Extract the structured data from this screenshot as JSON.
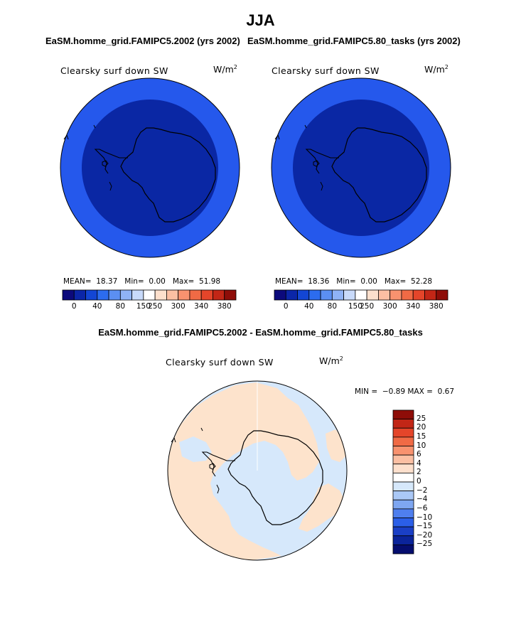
{
  "page": {
    "title": "JJA",
    "colors": {
      "deep_blue": "#0a27a4",
      "ring_blue": "#2558ec",
      "diff_positive": "#fde3cc",
      "diff_negative": "#d6e8fb",
      "coastline": "#000000"
    }
  },
  "panels": [
    {
      "case_title": "EaSM.homme_grid.FAMIPC5.2002 (yrs 2002)",
      "variable": "Clearsky surf down SW",
      "units": "W/m",
      "units_exp": "2",
      "stats": {
        "mean_label": "MEAN=",
        "mean": "18.37",
        "min_label": "Min=",
        "min": "0.00",
        "max_label": "Max=",
        "max": "51.98"
      }
    },
    {
      "case_title": "EaSM.homme_grid.FAMIPC5.80_tasks (yrs 2002)",
      "variable": "Clearsky surf down SW",
      "units": "W/m",
      "units_exp": "2",
      "stats": {
        "mean_label": "MEAN=",
        "mean": "18.36",
        "min_label": "Min=",
        "min": "0.00",
        "max_label": "Max=",
        "max": "52.28"
      }
    }
  ],
  "diff_panel": {
    "title": "EaSM.homme_grid.FAMIPC5.2002 - EaSM.homme_grid.FAMIPC5.80_tasks",
    "variable": "Clearsky surf down SW",
    "units": "W/m",
    "units_exp": "2",
    "stats": {
      "min_label": "MIN =",
      "min": "−0.89",
      "max_label": "MAX =",
      "max": "0.67"
    }
  },
  "chart_data": [
    {
      "type": "heatmap",
      "projection": "south polar stereographic",
      "title": "EaSM.homme_grid.FAMIPC5.2002 (yrs 2002)",
      "variable": "Clearsky surf down SW",
      "units": "W/m2",
      "stats": {
        "mean": 18.37,
        "min": 0.0,
        "max": 51.98
      },
      "colorbar": {
        "orientation": "horizontal",
        "tick_labels": [
          "0",
          "40",
          "80",
          "150",
          "250",
          "300",
          "340",
          "380"
        ],
        "colors": [
          "#0c0a7c",
          "#0b26a8",
          "#1346d4",
          "#2c6cef",
          "#5b8ff2",
          "#8fb3f6",
          "#c8dafa",
          "#ffffff",
          "#fde0cd",
          "#fbbfa3",
          "#f8926f",
          "#f06a45",
          "#e4452a",
          "#c22616",
          "#8e0d08"
        ]
      }
    },
    {
      "type": "heatmap",
      "projection": "south polar stereographic",
      "title": "EaSM.homme_grid.FAMIPC5.80_tasks (yrs 2002)",
      "variable": "Clearsky surf down SW",
      "units": "W/m2",
      "stats": {
        "mean": 18.36,
        "min": 0.0,
        "max": 52.28
      },
      "colorbar": {
        "orientation": "horizontal",
        "tick_labels": [
          "0",
          "40",
          "80",
          "150",
          "250",
          "300",
          "340",
          "380"
        ],
        "colors": [
          "#0c0a7c",
          "#0b26a8",
          "#1346d4",
          "#2c6cef",
          "#5b8ff2",
          "#8fb3f6",
          "#c8dafa",
          "#ffffff",
          "#fde0cd",
          "#fbbfa3",
          "#f8926f",
          "#f06a45",
          "#e4452a",
          "#c22616",
          "#8e0d08"
        ]
      }
    },
    {
      "type": "heatmap",
      "projection": "south polar stereographic",
      "title": "EaSM.homme_grid.FAMIPC5.2002 - EaSM.homme_grid.FAMIPC5.80_tasks",
      "variable": "Clearsky surf down SW",
      "units": "W/m2",
      "stats": {
        "min": -0.89,
        "max": 0.67
      },
      "colorbar": {
        "orientation": "vertical",
        "tick_labels": [
          "25",
          "20",
          "15",
          "10",
          "6",
          "4",
          "2",
          "0",
          "−2",
          "−4",
          "−6",
          "−10",
          "−15",
          "−20",
          "−25"
        ],
        "colors": [
          "#8e0d08",
          "#c22616",
          "#e4452a",
          "#f06a45",
          "#f8926f",
          "#fbbfa3",
          "#fde0cd",
          "#ffffff",
          "#d6e8fb",
          "#aac8f6",
          "#7ea6f1",
          "#4f7fef",
          "#2b5fe8",
          "#1a3fc6",
          "#0b249a",
          "#050d6e"
        ]
      }
    }
  ]
}
